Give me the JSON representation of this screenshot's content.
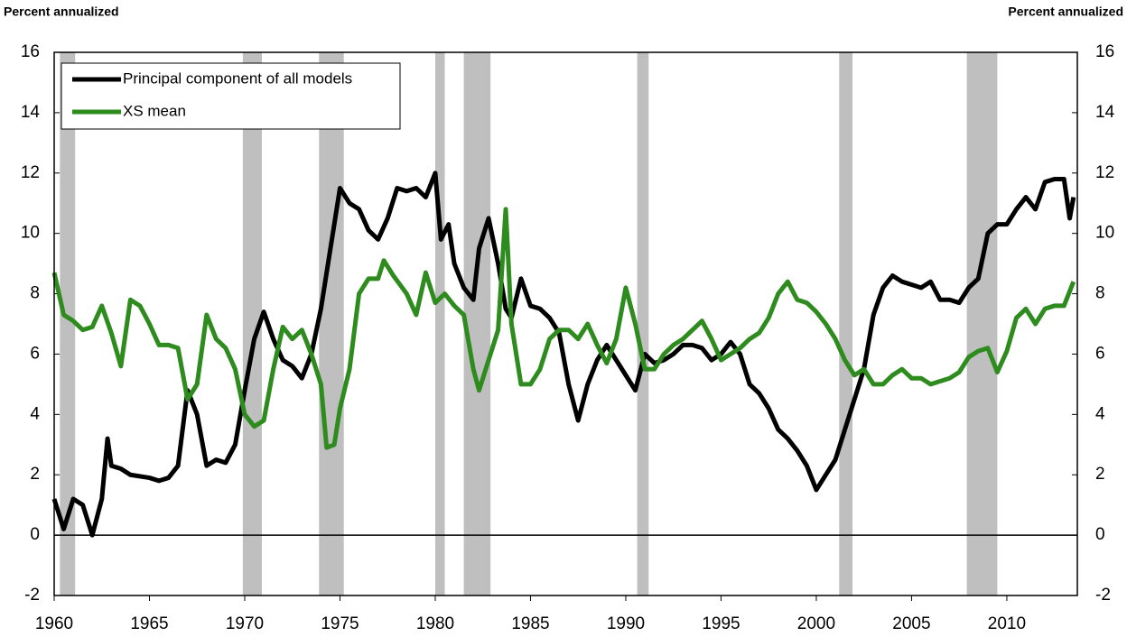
{
  "chart_data": {
    "type": "line",
    "y_label": "Percent annualized",
    "y2_label": "Percent annualized",
    "xlim": [
      1960,
      2013.7
    ],
    "xticks": [
      1960,
      1965,
      1970,
      1975,
      1980,
      1985,
      1990,
      1995,
      2000,
      2005,
      2010
    ],
    "ylim": [
      -2,
      16
    ],
    "yticks": [
      -2,
      0,
      2,
      4,
      6,
      8,
      10,
      12,
      14,
      16
    ],
    "y2lim": [
      -2,
      16
    ],
    "y2ticks": [
      -2,
      0,
      2,
      4,
      6,
      8,
      10,
      12,
      14,
      16
    ],
    "recession_color": "#bfbfbf",
    "recessions": [
      [
        1960.3,
        1961.1
      ],
      [
        1969.9,
        1970.9
      ],
      [
        1973.9,
        1975.2
      ],
      [
        1980.0,
        1980.5
      ],
      [
        1981.5,
        1982.9
      ],
      [
        1990.6,
        1991.2
      ],
      [
        2001.2,
        2001.9
      ],
      [
        2007.9,
        2009.5
      ]
    ],
    "series": [
      {
        "name": "Principal component of all models",
        "color": "#000000",
        "x": [
          1960,
          1960.5,
          1961,
          1961.5,
          1962,
          1962.5,
          1962.8,
          1963,
          1963.5,
          1964,
          1965,
          1965.5,
          1966,
          1966.5,
          1967,
          1967.5,
          1968,
          1968.5,
          1969,
          1969.5,
          1970,
          1970.5,
          1971,
          1971.5,
          1972,
          1972.5,
          1973,
          1973.5,
          1974,
          1974.5,
          1975,
          1975.5,
          1976,
          1976.5,
          1977,
          1977.5,
          1978,
          1978.5,
          1979,
          1979.5,
          1980,
          1980.3,
          1980.7,
          1981,
          1981.5,
          1982,
          1982.3,
          1982.8,
          1983.3,
          1983.7,
          1984,
          1984.5,
          1985,
          1985.5,
          1986,
          1986.5,
          1987,
          1987.5,
          1988,
          1988.5,
          1989,
          1989.5,
          1990,
          1990.5,
          1991,
          1991.5,
          1992,
          1992.5,
          1993,
          1993.5,
          1994,
          1994.5,
          1995,
          1995.5,
          1996,
          1996.5,
          1997,
          1997.5,
          1998,
          1998.5,
          1999,
          1999.5,
          2000,
          2000.5,
          2001,
          2001.5,
          2002,
          2002.5,
          2003,
          2003.5,
          2004,
          2004.5,
          2005,
          2005.5,
          2006,
          2006.5,
          2007,
          2007.5,
          2008,
          2008.5,
          2009,
          2009.5,
          2010,
          2010.5,
          2011,
          2011.5,
          2012,
          2012.5,
          2013,
          2013.3,
          2013.5
        ],
        "values": [
          1.2,
          0.2,
          1.2,
          1.0,
          0.0,
          1.2,
          3.2,
          2.3,
          2.2,
          2.0,
          1.9,
          1.8,
          1.9,
          2.3,
          4.8,
          4.0,
          2.3,
          2.5,
          2.4,
          3.0,
          4.8,
          6.5,
          7.4,
          6.5,
          5.8,
          5.6,
          5.2,
          6.0,
          7.5,
          9.5,
          11.5,
          11.0,
          10.8,
          10.1,
          9.8,
          10.5,
          11.5,
          11.4,
          11.5,
          11.2,
          12.0,
          9.8,
          10.3,
          9.0,
          8.2,
          7.8,
          9.5,
          10.5,
          9.0,
          7.5,
          7.2,
          8.5,
          7.6,
          7.5,
          7.2,
          6.7,
          5.0,
          3.8,
          5.0,
          5.8,
          6.3,
          5.8,
          5.3,
          4.8,
          6.0,
          5.7,
          5.8,
          6.0,
          6.3,
          6.3,
          6.2,
          5.8,
          6.0,
          6.4,
          6.0,
          5.0,
          4.7,
          4.2,
          3.5,
          3.2,
          2.8,
          2.3,
          1.5,
          2.0,
          2.5,
          3.5,
          4.5,
          5.5,
          7.3,
          8.2,
          8.6,
          8.4,
          8.3,
          8.2,
          8.4,
          7.8,
          7.8,
          7.7,
          8.2,
          8.5,
          10.0,
          10.3,
          10.3,
          10.8,
          11.2,
          10.8,
          11.7,
          11.8,
          11.8,
          10.5,
          11.2
        ]
      },
      {
        "name": "XS mean",
        "color": "#2e8b1e",
        "x": [
          1960,
          1960.5,
          1961,
          1961.5,
          1962,
          1962.5,
          1963,
          1963.5,
          1964,
          1964.5,
          1965,
          1965.5,
          1966,
          1966.5,
          1967,
          1967.5,
          1968,
          1968.5,
          1969,
          1969.5,
          1970,
          1970.5,
          1971,
          1971.5,
          1972,
          1972.5,
          1973,
          1973.5,
          1974,
          1974.3,
          1974.7,
          1975,
          1975.5,
          1976,
          1976.5,
          1977,
          1977.3,
          1977.8,
          1978.5,
          1979,
          1979.5,
          1980,
          1980.5,
          1981,
          1981.5,
          1982,
          1982.3,
          1982.8,
          1983.3,
          1983.7,
          1984,
          1984.5,
          1985,
          1985.5,
          1986,
          1986.5,
          1987,
          1987.5,
          1988,
          1988.5,
          1989,
          1989.5,
          1990,
          1990.5,
          1991,
          1991.5,
          1992,
          1992.5,
          1993,
          1993.5,
          1994,
          1994.5,
          1995,
          1995.5,
          1996,
          1996.5,
          1997,
          1997.5,
          1998,
          1998.5,
          1999,
          1999.5,
          2000,
          2000.5,
          2001,
          2001.5,
          2002,
          2002.5,
          2003,
          2003.5,
          2004,
          2004.5,
          2005,
          2005.5,
          2006,
          2006.5,
          2007,
          2007.5,
          2008,
          2008.5,
          2009,
          2009.5,
          2010,
          2010.5,
          2011,
          2011.5,
          2012,
          2012.5,
          2013,
          2013.5
        ],
        "values": [
          8.7,
          7.3,
          7.1,
          6.8,
          6.9,
          7.6,
          6.7,
          5.6,
          7.8,
          7.6,
          7.0,
          6.3,
          6.3,
          6.2,
          4.5,
          5.0,
          7.3,
          6.5,
          6.2,
          5.5,
          4.0,
          3.6,
          3.8,
          5.5,
          6.9,
          6.5,
          6.8,
          6.0,
          5.0,
          2.9,
          3.0,
          4.2,
          5.5,
          8.0,
          8.5,
          8.5,
          9.1,
          8.6,
          8.0,
          7.3,
          8.7,
          7.7,
          8.0,
          7.6,
          7.3,
          5.5,
          4.8,
          5.8,
          6.8,
          10.8,
          7.0,
          5.0,
          5.0,
          5.5,
          6.5,
          6.8,
          6.8,
          6.5,
          7.0,
          6.3,
          5.7,
          6.5,
          8.2,
          7.0,
          5.5,
          5.5,
          6.0,
          6.3,
          6.5,
          6.8,
          7.1,
          6.5,
          5.8,
          6.0,
          6.2,
          6.5,
          6.7,
          7.2,
          8.0,
          8.4,
          7.8,
          7.7,
          7.4,
          7.0,
          6.5,
          5.8,
          5.3,
          5.5,
          5.0,
          5.0,
          5.3,
          5.5,
          5.2,
          5.2,
          5.0,
          5.1,
          5.2,
          5.4,
          5.9,
          6.1,
          6.2,
          5.4,
          6.1,
          7.2,
          7.5,
          7.0,
          7.5,
          7.6,
          7.6,
          8.4
        ]
      }
    ]
  }
}
